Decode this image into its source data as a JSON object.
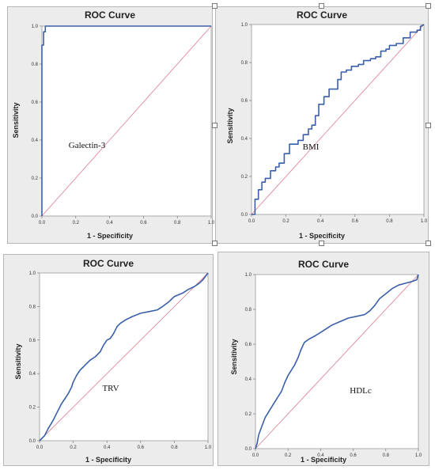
{
  "chart_data": [
    {
      "type": "line",
      "title": "ROC Curve",
      "xlabel": "1 - Specificity",
      "ylabel": "Sensitivity",
      "annotation": "Galectin-3",
      "xlim": [
        0,
        1
      ],
      "ylim": [
        0,
        1
      ],
      "xticks": [
        "0.0",
        "0.2",
        "0.4",
        "0.6",
        "0.8",
        "1.0"
      ],
      "yticks": [
        "0.0",
        "0.2",
        "0.4",
        "0.6",
        "0.8",
        "1.0"
      ],
      "series": [
        {
          "x": [
            0,
            0,
            0.01,
            0.01,
            0.02,
            0.02,
            1.0
          ],
          "y": [
            0,
            0.9,
            0.9,
            0.97,
            0.97,
            1.0,
            1.0
          ]
        }
      ],
      "colors": {
        "curve": "#3a5faa",
        "reference": "#e0899a"
      }
    },
    {
      "type": "line",
      "title": "ROC Curve",
      "xlabel": "1 - Specificity",
      "ylabel": "Sensitivity",
      "annotation": "BMI",
      "xlim": [
        0,
        1
      ],
      "ylim": [
        0,
        1
      ],
      "xticks": [
        "0.0",
        "0.2",
        "0.4",
        "0.6",
        "0.8",
        "1.0"
      ],
      "yticks": [
        "0.0",
        "0.2",
        "0.4",
        "0.6",
        "0.8",
        "1.0"
      ],
      "series": [
        {
          "x": [
            0,
            0.02,
            0.02,
            0.04,
            0.04,
            0.06,
            0.06,
            0.08,
            0.08,
            0.11,
            0.11,
            0.14,
            0.14,
            0.16,
            0.16,
            0.19,
            0.19,
            0.22,
            0.22,
            0.27,
            0.27,
            0.3,
            0.3,
            0.33,
            0.33,
            0.35,
            0.35,
            0.37,
            0.37,
            0.39,
            0.39,
            0.42,
            0.42,
            0.45,
            0.45,
            0.5,
            0.5,
            0.52,
            0.52,
            0.55,
            0.55,
            0.58,
            0.58,
            0.62,
            0.62,
            0.65,
            0.65,
            0.69,
            0.69,
            0.72,
            0.72,
            0.75,
            0.75,
            0.78,
            0.78,
            0.8,
            0.8,
            0.84,
            0.84,
            0.88,
            0.88,
            0.92,
            0.92,
            0.96,
            0.96,
            0.98,
            0.98,
            1.0
          ],
          "y": [
            0,
            0,
            0.08,
            0.08,
            0.13,
            0.13,
            0.17,
            0.17,
            0.19,
            0.19,
            0.23,
            0.23,
            0.25,
            0.25,
            0.27,
            0.27,
            0.32,
            0.32,
            0.37,
            0.37,
            0.39,
            0.39,
            0.42,
            0.42,
            0.45,
            0.45,
            0.47,
            0.47,
            0.52,
            0.52,
            0.58,
            0.58,
            0.62,
            0.62,
            0.66,
            0.66,
            0.71,
            0.71,
            0.75,
            0.75,
            0.76,
            0.76,
            0.78,
            0.78,
            0.79,
            0.79,
            0.81,
            0.81,
            0.82,
            0.82,
            0.83,
            0.83,
            0.86,
            0.86,
            0.87,
            0.87,
            0.89,
            0.89,
            0.9,
            0.9,
            0.93,
            0.93,
            0.96,
            0.96,
            0.97,
            0.97,
            0.99,
            1.0
          ]
        }
      ],
      "colors": {
        "curve": "#3a5faa",
        "reference": "#e0899a"
      }
    },
    {
      "type": "line",
      "title": "ROC Curve",
      "xlabel": "1 - Specificity",
      "ylabel": "Sensitivity",
      "annotation": "TRV",
      "xlim": [
        0,
        1
      ],
      "ylim": [
        0,
        1
      ],
      "xticks": [
        "0.0",
        "0.2",
        "0.4",
        "0.6",
        "0.8",
        "1.0"
      ],
      "yticks": [
        "0.0",
        "0.2",
        "0.4",
        "0.6",
        "0.8",
        "1.0"
      ],
      "series": [
        {
          "x": [
            0,
            0.03,
            0.05,
            0.08,
            0.11,
            0.13,
            0.15,
            0.17,
            0.19,
            0.2,
            0.22,
            0.24,
            0.27,
            0.3,
            0.33,
            0.36,
            0.38,
            0.4,
            0.42,
            0.44,
            0.46,
            0.48,
            0.51,
            0.55,
            0.6,
            0.65,
            0.7,
            0.73,
            0.77,
            0.8,
            0.85,
            0.88,
            0.92,
            0.95,
            0.97,
            1.0
          ],
          "y": [
            0,
            0.03,
            0.07,
            0.12,
            0.18,
            0.22,
            0.25,
            0.28,
            0.32,
            0.35,
            0.39,
            0.42,
            0.45,
            0.48,
            0.5,
            0.53,
            0.57,
            0.6,
            0.61,
            0.64,
            0.68,
            0.7,
            0.72,
            0.74,
            0.76,
            0.77,
            0.78,
            0.8,
            0.83,
            0.86,
            0.88,
            0.9,
            0.92,
            0.94,
            0.96,
            1.0
          ]
        }
      ],
      "colors": {
        "curve": "#3a5faa",
        "reference": "#e0899a"
      }
    },
    {
      "type": "line",
      "title": "ROC Curve",
      "xlabel": "1 - Specificity",
      "ylabel": "Sensitivity",
      "annotation": "HDLc",
      "xlim": [
        0,
        1
      ],
      "ylim": [
        0,
        1
      ],
      "xticks": [
        "0.0",
        "0.2",
        "0.4",
        "0.6",
        "0.8",
        "1.0"
      ],
      "yticks": [
        "0.0",
        "0.2",
        "0.4",
        "0.6",
        "0.8",
        "1.0"
      ],
      "series": [
        {
          "x": [
            0,
            0.01,
            0.02,
            0.04,
            0.06,
            0.08,
            0.1,
            0.12,
            0.14,
            0.16,
            0.18,
            0.2,
            0.22,
            0.24,
            0.26,
            0.28,
            0.3,
            0.33,
            0.37,
            0.42,
            0.47,
            0.52,
            0.57,
            0.62,
            0.67,
            0.7,
            0.73,
            0.76,
            0.8,
            0.84,
            0.88,
            0.92,
            0.96,
            0.99,
            1.0
          ],
          "y": [
            0,
            0.03,
            0.08,
            0.13,
            0.18,
            0.21,
            0.24,
            0.27,
            0.3,
            0.33,
            0.38,
            0.42,
            0.45,
            0.48,
            0.52,
            0.57,
            0.61,
            0.63,
            0.65,
            0.68,
            0.71,
            0.73,
            0.75,
            0.76,
            0.77,
            0.79,
            0.82,
            0.86,
            0.89,
            0.92,
            0.94,
            0.95,
            0.96,
            0.97,
            1.0
          ]
        }
      ],
      "colors": {
        "curve": "#3a5faa",
        "reference": "#e0899a"
      }
    }
  ]
}
